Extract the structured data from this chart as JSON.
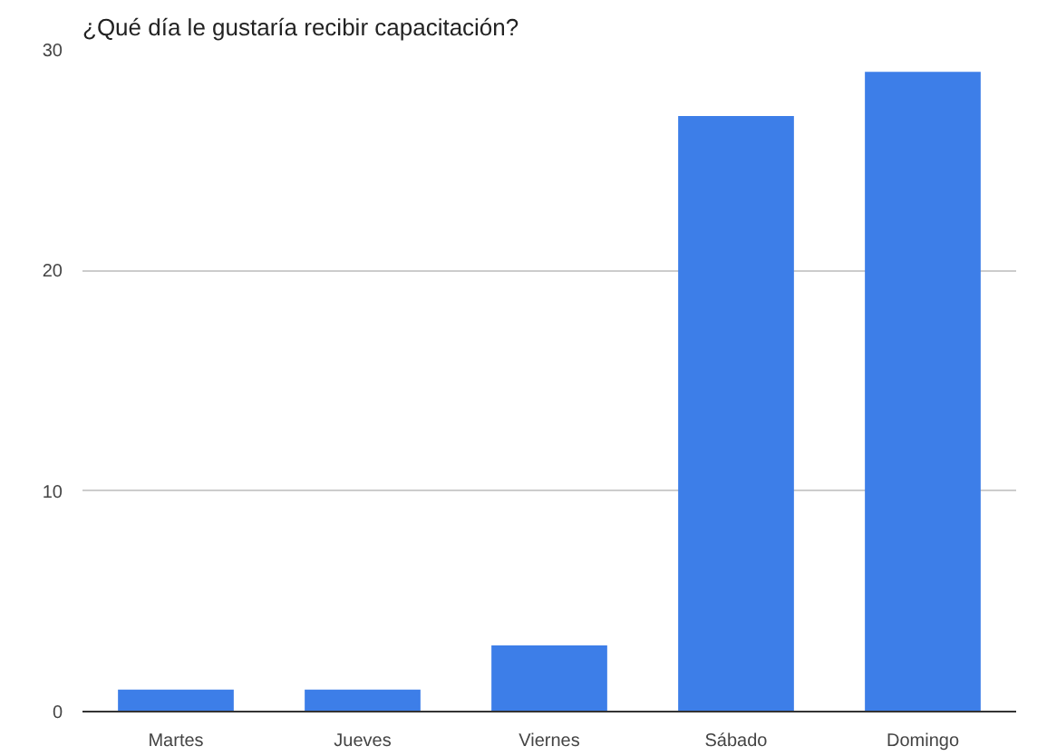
{
  "chart_data": {
    "type": "bar",
    "title": "¿Qué día le gustaría recibir capacitación?",
    "categories": [
      "Martes",
      "Jueves",
      "Viernes",
      "Sábado",
      "Domingo"
    ],
    "values": [
      1,
      1,
      3,
      27,
      29
    ],
    "color": "#3d7ee8",
    "ylim": [
      0,
      30
    ],
    "yticks": [
      0,
      10,
      20,
      30
    ],
    "grid": "y"
  }
}
